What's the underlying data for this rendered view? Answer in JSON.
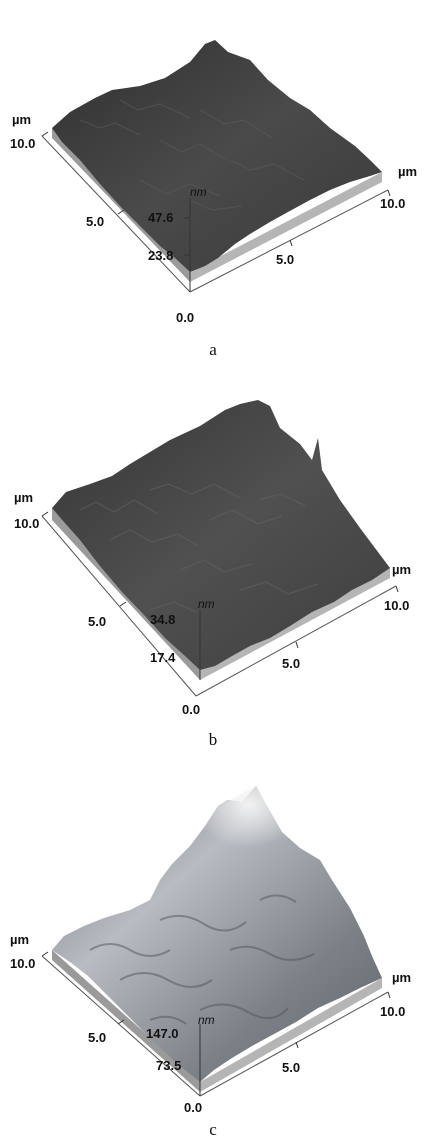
{
  "panels": [
    {
      "caption": "a",
      "axis_unit_xy": "µm",
      "axis_unit_z": "nm",
      "left_axis_ticks": [
        "10.0",
        "5.0"
      ],
      "right_axis_ticks": [
        "10.0",
        "5.0"
      ],
      "z_ticks": [
        "47.6",
        "23.8"
      ],
      "origin": "0.0"
    },
    {
      "caption": "b",
      "axis_unit_xy": "µm",
      "axis_unit_z": "nm",
      "left_axis_ticks": [
        "10.0",
        "5.0"
      ],
      "right_axis_ticks": [
        "10.0",
        "5.0"
      ],
      "z_ticks": [
        "34.8",
        "17.4"
      ],
      "origin": "0.0"
    },
    {
      "caption": "c",
      "axis_unit_xy": "µm",
      "axis_unit_z": "nm",
      "left_axis_ticks": [
        "10.0",
        "5.0"
      ],
      "right_axis_ticks": [
        "10.0",
        "5.0"
      ],
      "z_ticks": [
        "147.0",
        "73.5"
      ],
      "origin": "0.0"
    }
  ],
  "surface_colors": {
    "a": "#3d3d3d",
    "b": "#3f3f3f",
    "c": "#8a8f96"
  }
}
